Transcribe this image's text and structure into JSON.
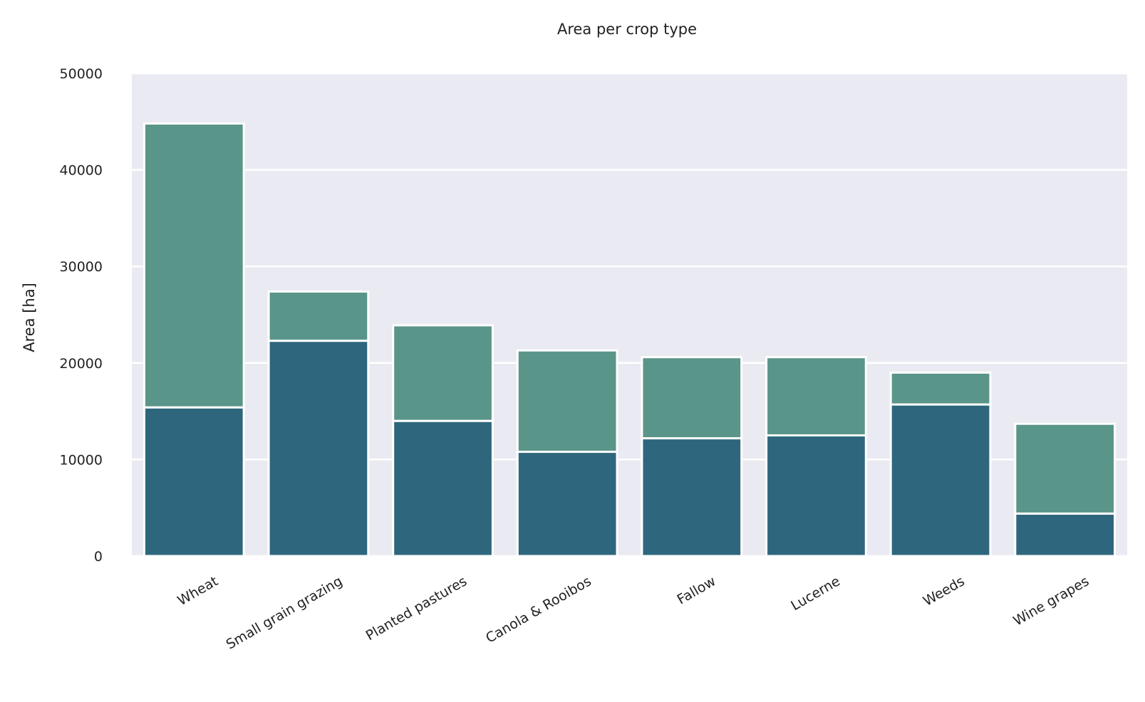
{
  "chart_data": {
    "type": "bar",
    "stacked": true,
    "title": "Area per crop type",
    "xlabel": "",
    "ylabel": "Area [ha]",
    "ylim": [
      0,
      50000
    ],
    "yticks": [
      0,
      10000,
      20000,
      30000,
      40000,
      50000
    ],
    "grid": true,
    "categories": [
      "Wheat",
      "Small grain grazing",
      "Planted pastures",
      "Canola & Rooibos",
      "Fallow",
      "Lucerne",
      "Weeds",
      "Wine grapes"
    ],
    "series": [
      {
        "values": [
          15400,
          22300,
          14000,
          10800,
          12200,
          12500,
          15700,
          4400
        ],
        "color": "#2e677d"
      },
      {
        "values": [
          29400,
          5100,
          9900,
          10500,
          8400,
          8100,
          3300,
          9300
        ],
        "color": "#5a9589"
      }
    ]
  }
}
